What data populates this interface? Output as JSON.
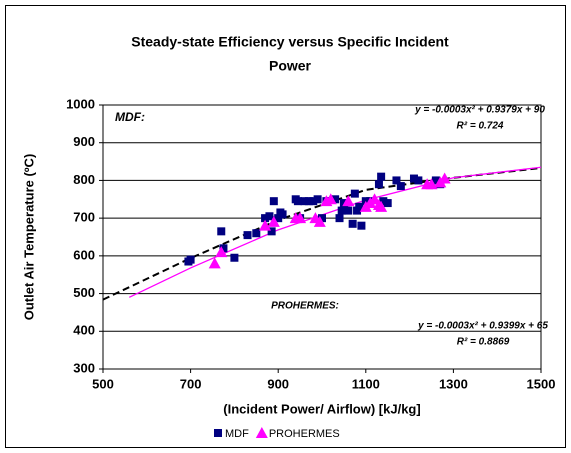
{
  "chart_data": {
    "type": "scatter",
    "title": "Steady-state Efficiency versus Specific Incident Power",
    "x_label": "(Incident Power/ Airflow) [kJ/kg]",
    "y_label": "Outlet Air Temperature (ºC)",
    "xlim": [
      500,
      1500
    ],
    "xticks": [
      500,
      700,
      900,
      1100,
      1300,
      1500
    ],
    "ylim": [
      300,
      1000
    ],
    "yticks": [
      300,
      400,
      500,
      600,
      700,
      800,
      900,
      1000
    ],
    "grid": true,
    "legend": "bottom",
    "annotations": [
      "MDF:",
      "y = -0.0003x² + 0.9379x + 90",
      "R² = 0.724",
      "PROHERMES:",
      "y = -0.0003x² + 0.9399x + 65",
      "R² = 0.8869"
    ],
    "series": [
      {
        "name": "MDF",
        "color": "#000080",
        "marker": "square",
        "x": [
          695,
          700,
          770,
          775,
          800,
          830,
          850,
          870,
          880,
          885,
          890,
          900,
          905,
          910,
          940,
          945,
          950,
          960,
          970,
          980,
          990,
          1000,
          1010,
          1030,
          1040,
          1045,
          1050,
          1060,
          1070,
          1075,
          1080,
          1085,
          1090,
          1100,
          1110,
          1130,
          1135,
          1140,
          1150,
          1170,
          1180,
          1210,
          1220,
          1260,
          1270
        ],
        "values": [
          585,
          590,
          665,
          620,
          595,
          655,
          660,
          700,
          705,
          665,
          745,
          700,
          715,
          710,
          750,
          745,
          700,
          745,
          745,
          745,
          750,
          700,
          745,
          750,
          700,
          720,
          740,
          720,
          685,
          765,
          720,
          730,
          680,
          745,
          745,
          790,
          810,
          745,
          740,
          800,
          785,
          805,
          800,
          800,
          790
        ]
      },
      {
        "name": "PROHERMES",
        "color": "#ff00ff",
        "marker": "triangle",
        "x": [
          755,
          770,
          870,
          890,
          940,
          950,
          985,
          995,
          1010,
          1020,
          1060,
          1100,
          1110,
          1120,
          1130,
          1135,
          1240,
          1250,
          1270,
          1280
        ],
        "values": [
          580,
          610,
          680,
          690,
          700,
          700,
          700,
          690,
          745,
          750,
          745,
          730,
          740,
          750,
          735,
          730,
          790,
          790,
          795,
          805
        ]
      }
    ],
    "trendlines": [
      {
        "color": "#000000",
        "dash": true,
        "x": [
          500,
          700,
          900,
          1100,
          1300,
          1500
        ],
        "values": [
          484,
          594,
          695,
          775,
          807,
          833
        ]
      },
      {
        "color": "#ff00ff",
        "dash": false,
        "x": [
          560,
          700,
          900,
          1100,
          1300,
          1500
        ],
        "values": [
          490,
          568,
          669,
          748,
          807,
          835
        ]
      }
    ]
  }
}
